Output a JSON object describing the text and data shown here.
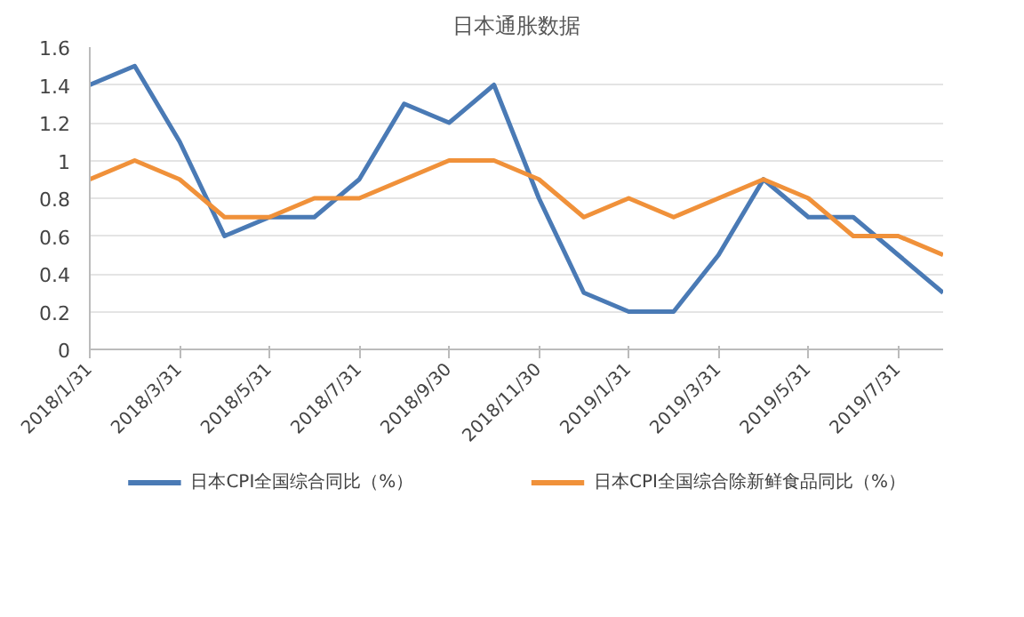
{
  "chart_data": {
    "type": "line",
    "title": "日本通胀数据",
    "categories": [
      "2018/1/31",
      null,
      "2018/3/31",
      null,
      "2018/5/31",
      null,
      "2018/7/31",
      null,
      "2018/9/30",
      null,
      "2018/11/30",
      null,
      "2019/1/31",
      null,
      "2019/3/31",
      null,
      "2019/5/31",
      null,
      "2019/7/31",
      null
    ],
    "series": [
      {
        "name": "日本CPI全国综合同比（%）",
        "color": "#4a7ab5",
        "values": [
          1.4,
          1.5,
          1.1,
          0.6,
          0.7,
          0.7,
          0.9,
          1.3,
          1.2,
          1.4,
          0.8,
          0.3,
          0.2,
          0.2,
          0.5,
          0.9,
          0.7,
          0.7,
          0.5,
          0.3
        ]
      },
      {
        "name": "日本CPI全国综合除新鲜食品同比（%）",
        "color": "#f0913a",
        "values": [
          0.9,
          1.0,
          0.9,
          0.7,
          0.7,
          0.8,
          0.8,
          0.9,
          1.0,
          1.0,
          0.9,
          0.7,
          0.8,
          0.7,
          0.8,
          0.9,
          0.8,
          0.6,
          0.6,
          0.5
        ]
      }
    ],
    "ylim": [
      0,
      1.6
    ],
    "yticks": [
      0,
      0.2,
      0.4,
      0.6,
      0.8,
      1,
      1.2,
      1.4,
      1.6
    ],
    "grid": "y",
    "legend": "bottom",
    "line_style": "solid"
  }
}
